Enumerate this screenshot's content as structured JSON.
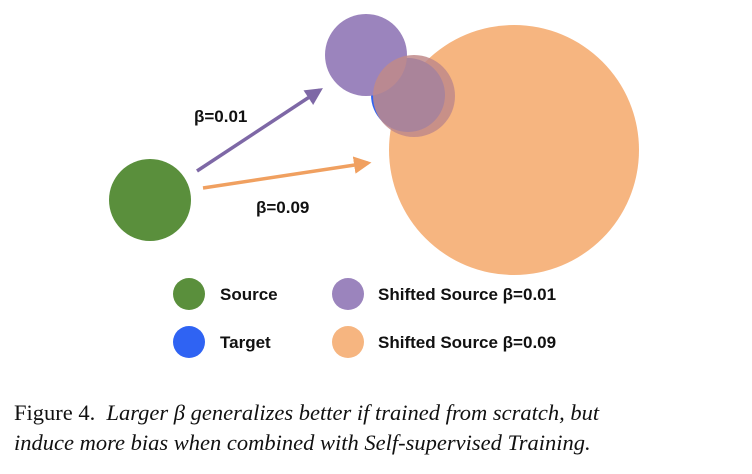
{
  "diagram": {
    "arrow_labels": [
      "β=0.01",
      "β=0.09"
    ],
    "legend": [
      {
        "label": "Source",
        "color": "#5a8f3c"
      },
      {
        "label": "Target",
        "color": "#2f63f3"
      },
      {
        "label": "Shifted Source β=0.01",
        "color": "#9b84bd"
      },
      {
        "label": "Shifted Source β=0.09",
        "color": "#f6b580"
      }
    ],
    "colors": {
      "source": "#5a8f3c",
      "target": "#2f63f3",
      "shifted_001": "#9b84bd",
      "shifted_009": "#f6b580",
      "arrow_001": "#7e68a6",
      "arrow_009": "#f0a060"
    }
  },
  "caption": {
    "label": "Figure 4.",
    "text_line1": "Larger β generalizes better if trained from scratch, but",
    "text_line2": "induce more bias when combined with Self-supervised Training."
  }
}
